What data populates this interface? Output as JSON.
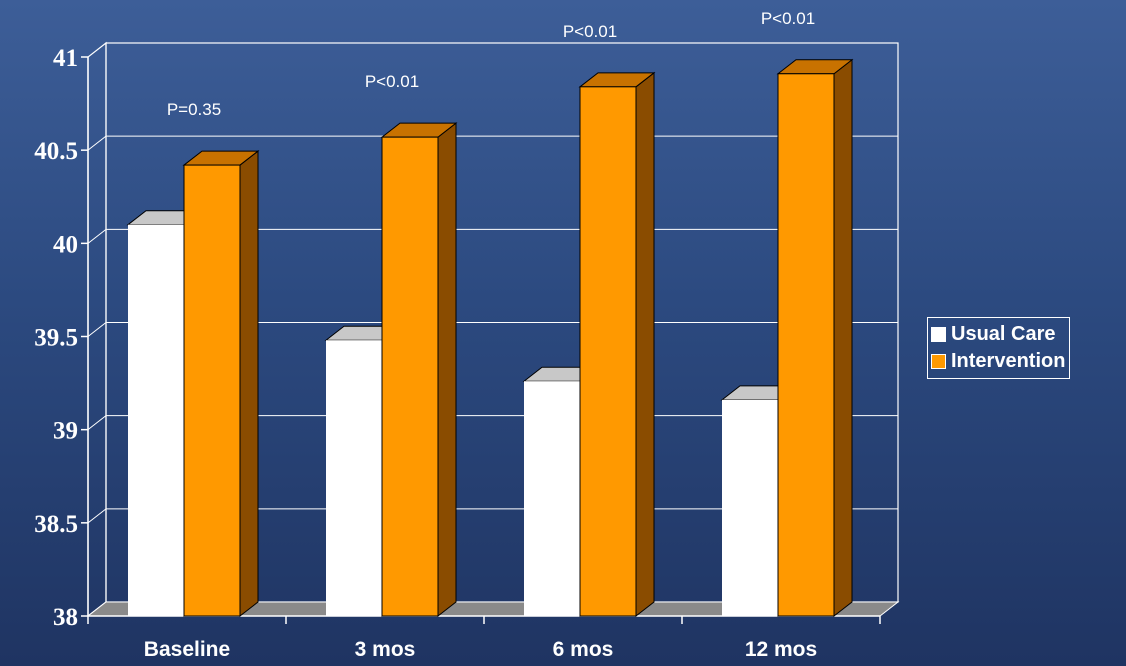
{
  "chart_data": {
    "type": "bar",
    "categories": [
      "Baseline",
      "3 mos",
      "6 mos",
      "12 mos"
    ],
    "series": [
      {
        "name": "Usual Care",
        "values": [
          40.1,
          39.48,
          39.26,
          39.16
        ],
        "color": "#ffffff"
      },
      {
        "name": "Intervention",
        "values": [
          40.42,
          40.57,
          40.84,
          40.91
        ],
        "color": "#ff9900"
      }
    ],
    "annotations": [
      "P=0.35",
      "P<0.01",
      "P<0.01",
      "P<0.01"
    ],
    "yticks": [
      "38",
      "38.5",
      "39",
      "39.5",
      "40",
      "40.5",
      "41"
    ],
    "ylim": [
      38,
      41
    ],
    "title": "",
    "xlabel": "",
    "ylabel": "",
    "grid": true,
    "legend_position": "right"
  }
}
